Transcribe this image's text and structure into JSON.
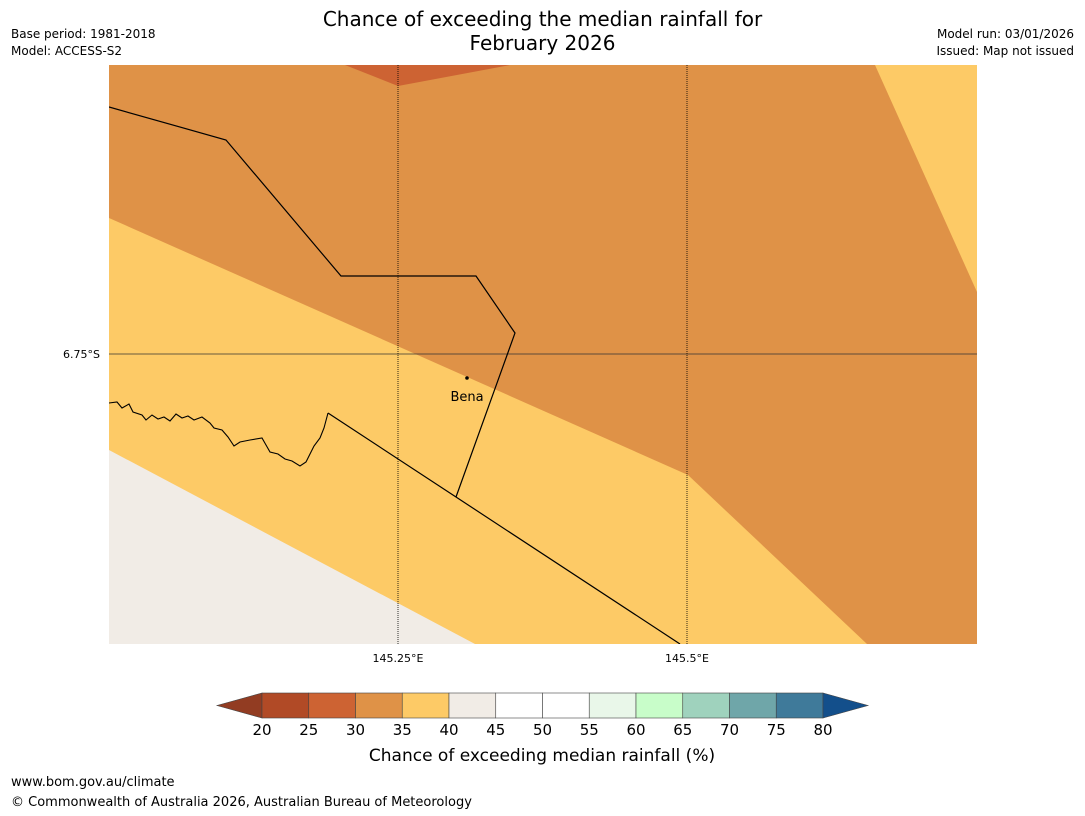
{
  "header": {
    "title_line1": "Chance of exceeding the median rainfall for",
    "title_line2": "February 2026",
    "base_period": "Base period: 1981-2018",
    "model": "Model: ACCESS-S2",
    "model_run": "Model run: 03/01/2026",
    "issued": "Issued: Map not issued"
  },
  "map": {
    "place": "Bena",
    "lat_label": "6.75°S",
    "lon_labels": [
      "145.25°E",
      "145.5°E"
    ],
    "colors": {
      "c20_25": "#b14a26",
      "c25_30": "#cd6333",
      "c30_35": "#df9247",
      "c35_40": "#fdca66",
      "c40_45": "#f1ece6"
    }
  },
  "colorbar": {
    "ticks": [
      "20",
      "25",
      "30",
      "35",
      "40",
      "45",
      "50",
      "55",
      "60",
      "65",
      "70",
      "75",
      "80"
    ],
    "colors": [
      "#b14a26",
      "#cd6333",
      "#df9247",
      "#fdca66",
      "#f1ece6",
      "#ffffff",
      "#ffffff",
      "#e9f7e9",
      "#c8fdc9",
      "#9fd2bd",
      "#6fa6a9",
      "#3f7a9a"
    ],
    "under_color": "#923c22",
    "over_color": "#134f8b",
    "label": "Chance of exceeding median rainfall (%)"
  },
  "footer": {
    "url": "www.bom.gov.au/climate",
    "copyright": "© Commonwealth of Australia 2026, Australian Bureau of Meteorology"
  }
}
